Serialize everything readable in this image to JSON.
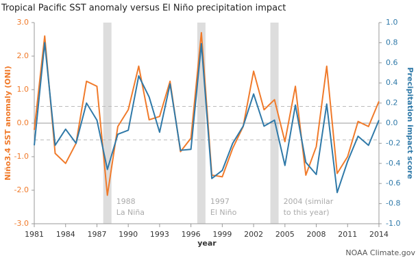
{
  "chart_data": {
    "type": "line",
    "title": "Tropical Pacific SST anomaly versus El Niño precipitation impact",
    "x_label": "year",
    "y_label": "Niño3.4 SST anomaly (ONI)",
    "y2_label": "Precipitation impact score",
    "source": "NOAA Climate.gov",
    "x": [
      1981,
      1982,
      1983,
      1984,
      1985,
      1986,
      1987,
      1988,
      1989,
      1990,
      1991,
      1992,
      1993,
      1994,
      1995,
      1996,
      1997,
      1998,
      1999,
      2000,
      2001,
      2002,
      2003,
      2004,
      2005,
      2006,
      2007,
      2008,
      2009,
      2010,
      2011,
      2012,
      2013,
      2014
    ],
    "xlim": [
      1981,
      2014
    ],
    "xticks": [
      1981,
      1984,
      1987,
      1990,
      1993,
      1996,
      1999,
      2002,
      2005,
      2008,
      2011,
      2014
    ],
    "ylim": [
      -3,
      3
    ],
    "yticks": [
      {
        "value": 3,
        "label": "3.0"
      },
      {
        "value": 2,
        "label": "2.0"
      },
      {
        "value": 1,
        "label": "1.0"
      },
      {
        "value": 0,
        "label": "0.0"
      },
      {
        "value": -1,
        "label": "-1.0"
      },
      {
        "value": -2,
        "label": "-2.0"
      },
      {
        "value": -3,
        "label": "-3.0"
      }
    ],
    "y2lim": [
      -1,
      1
    ],
    "y2ticks": [
      {
        "value": 1,
        "label": "1.0"
      },
      {
        "value": 0.8,
        "label": "0.8"
      },
      {
        "value": 0.6,
        "label": "0.6"
      },
      {
        "value": 0.4,
        "label": "0.4"
      },
      {
        "value": 0.2,
        "label": "0.2"
      },
      {
        "value": 0,
        "label": "0.0"
      },
      {
        "value": -0.2,
        "label": "-0.2"
      },
      {
        "value": -0.4,
        "label": "-0.4"
      },
      {
        "value": -0.6,
        "label": "-0.6"
      },
      {
        "value": -0.8,
        "label": "-0.8"
      },
      {
        "value": -1,
        "label": "-1.0"
      }
    ],
    "reference_lines": [
      0.5,
      -0.5
    ],
    "highlights": [
      {
        "x": 1988,
        "lines": [
          "1988",
          "La Niña"
        ]
      },
      {
        "x": 1997,
        "lines": [
          "1997",
          "El Niño"
        ]
      },
      {
        "x": 2004,
        "lines": [
          "2004 (similar",
          "to this year)"
        ]
      }
    ],
    "series": [
      {
        "name": "Niño3.4 SST anomaly (ONI)",
        "color": "#f07a2a",
        "axis": "y",
        "values": [
          -0.2,
          2.6,
          -0.9,
          -1.2,
          -0.6,
          1.25,
          1.1,
          -2.15,
          -0.1,
          0.4,
          1.7,
          0.1,
          0.2,
          1.25,
          -0.85,
          -0.45,
          2.7,
          -1.55,
          -1.6,
          -0.75,
          -0.1,
          1.55,
          0.4,
          0.7,
          -0.55,
          1.1,
          -1.55,
          -0.7,
          1.7,
          -1.5,
          -1.0,
          0.05,
          -0.1,
          0.65
        ]
      },
      {
        "name": "Precipitation impact score",
        "color": "#2f79a8",
        "axis": "y2",
        "values": [
          -0.22,
          0.8,
          -0.22,
          -0.06,
          -0.2,
          0.2,
          0.03,
          -0.46,
          -0.11,
          -0.07,
          0.47,
          0.26,
          -0.09,
          0.39,
          -0.27,
          -0.26,
          0.79,
          -0.55,
          -0.47,
          -0.2,
          -0.03,
          0.29,
          -0.03,
          0.03,
          -0.42,
          0.18,
          -0.39,
          -0.51,
          0.19,
          -0.69,
          -0.38,
          -0.13,
          -0.22,
          0.03
        ]
      }
    ]
  }
}
